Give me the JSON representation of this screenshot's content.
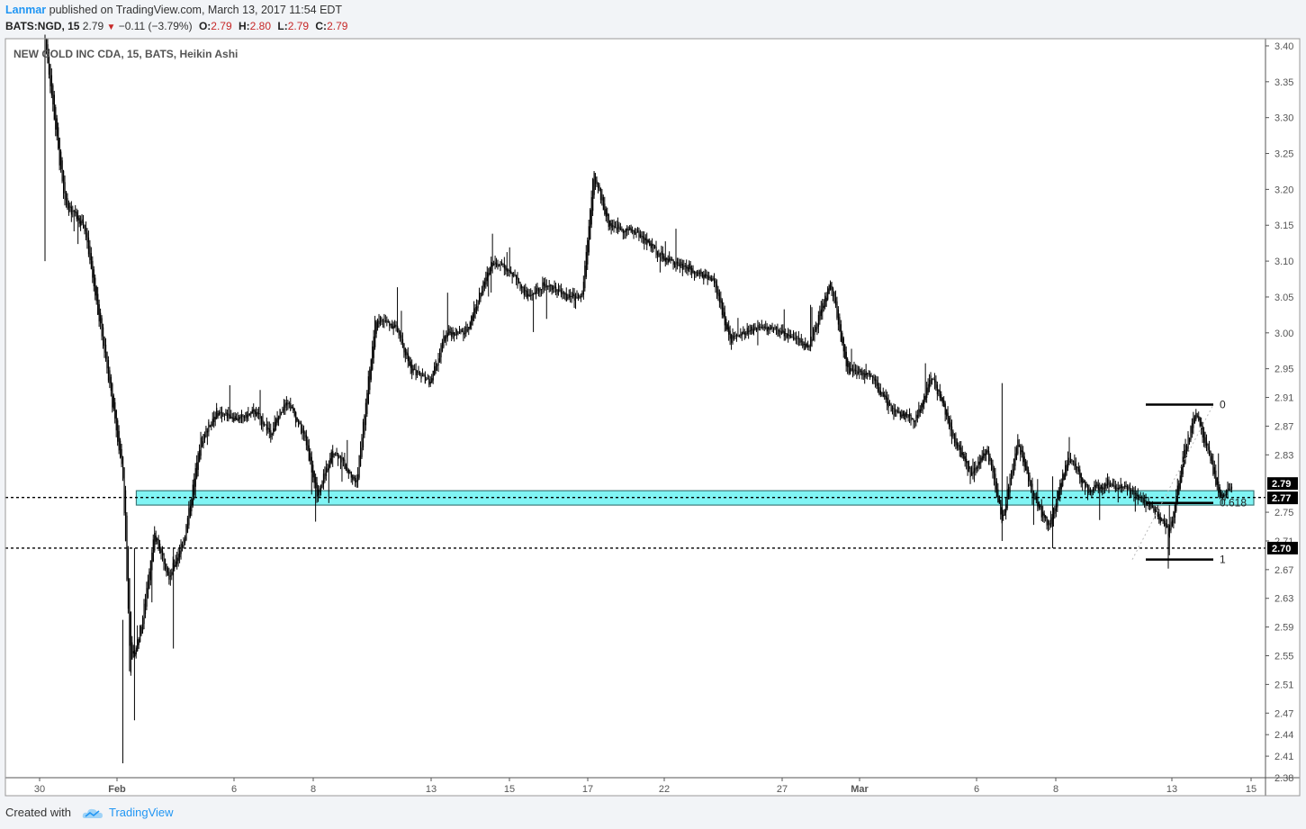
{
  "header": {
    "author": "Lanmar",
    "published_text": "published on TradingView.com, March 13, 2017 11:54 EDT",
    "symbol": "BATS:NGD, 15",
    "last": "2.79",
    "change": "−0.11 (−3.79%)",
    "o_label": "O:",
    "o_value": "2.79",
    "h_label": "H:",
    "h_value": "2.80",
    "l_label": "L:",
    "l_value": "2.79",
    "c_label": "C:",
    "c_value": "2.79"
  },
  "footer": {
    "created_with": "Created with",
    "brand": "TradingView",
    "icon": "tradingview-cloud-icon"
  },
  "colors": {
    "up": "#000000",
    "zone_fill": "#80f4f4",
    "zone_border": "#3c7a7a",
    "brand": "#2196f3",
    "down": "#c62828"
  },
  "chart_data": {
    "type": "candlestick",
    "legend": "NEW GOLD INC CDA, 15, BATS, Heikin Ashi",
    "y_axis": {
      "side": "right",
      "range": [
        2.38,
        3.41
      ],
      "ticks": [
        "3.40",
        "3.35",
        "3.30",
        "3.25",
        "3.20",
        "3.15",
        "3.10",
        "3.05",
        "3.00",
        "2.95",
        "2.91",
        "2.87",
        "2.83",
        "2.79",
        "2.77",
        "2.75",
        "2.71",
        "2.70",
        "2.67",
        "2.63",
        "2.59",
        "2.55",
        "2.51",
        "2.47",
        "2.44",
        "2.41",
        "2.38"
      ],
      "highlighted": [
        "2.79",
        "2.77",
        "2.70"
      ]
    },
    "x_axis": {
      "ticks": [
        "30",
        "Feb",
        "6",
        "8",
        "13",
        "15",
        "17",
        "22",
        "27",
        "Mar",
        "6",
        "8",
        "13",
        "15"
      ]
    },
    "series": [
      {
        "path_points": [
          [
            0.0,
            3.41
          ],
          [
            0.5,
            3.18
          ],
          [
            1.0,
            3.15
          ],
          [
            1.6,
            2.95
          ],
          [
            2.0,
            2.8
          ],
          [
            2.2,
            2.53
          ],
          [
            2.5,
            2.6
          ],
          [
            2.8,
            2.72
          ],
          [
            3.2,
            2.66
          ],
          [
            3.6,
            2.72
          ],
          [
            4.0,
            2.85
          ],
          [
            4.4,
            2.89
          ],
          [
            5.0,
            2.88
          ],
          [
            5.4,
            2.89
          ],
          [
            5.8,
            2.86
          ],
          [
            6.2,
            2.91
          ],
          [
            6.7,
            2.85
          ],
          [
            7.0,
            2.77
          ],
          [
            7.4,
            2.84
          ],
          [
            8.0,
            2.79
          ],
          [
            8.5,
            3.02
          ],
          [
            9.0,
            3.01
          ],
          [
            9.4,
            2.95
          ],
          [
            9.9,
            2.93
          ],
          [
            10.3,
            3.0
          ],
          [
            10.8,
            3.0
          ],
          [
            11.5,
            3.1
          ],
          [
            11.9,
            3.09
          ],
          [
            12.4,
            3.05
          ],
          [
            12.9,
            3.07
          ],
          [
            13.4,
            3.05
          ],
          [
            13.8,
            3.05
          ],
          [
            14.1,
            3.22
          ],
          [
            14.5,
            3.15
          ],
          [
            15.2,
            3.14
          ],
          [
            16.0,
            3.1
          ],
          [
            16.6,
            3.09
          ],
          [
            17.2,
            3.07
          ],
          [
            17.6,
            2.99
          ],
          [
            18.4,
            3.01
          ],
          [
            19.0,
            3.0
          ],
          [
            19.6,
            2.98
          ],
          [
            20.2,
            3.07
          ],
          [
            20.6,
            2.95
          ],
          [
            21.2,
            2.94
          ],
          [
            21.8,
            2.89
          ],
          [
            22.4,
            2.88
          ],
          [
            22.8,
            2.94
          ],
          [
            23.3,
            2.86
          ],
          [
            23.8,
            2.8
          ],
          [
            24.2,
            2.84
          ],
          [
            24.6,
            2.74
          ],
          [
            25.0,
            2.85
          ],
          [
            25.4,
            2.77
          ],
          [
            25.8,
            2.73
          ],
          [
            26.3,
            2.83
          ],
          [
            26.8,
            2.78
          ],
          [
            27.3,
            2.79
          ],
          [
            27.9,
            2.78
          ],
          [
            28.4,
            2.76
          ],
          [
            28.9,
            2.72
          ],
          [
            29.3,
            2.84
          ],
          [
            29.6,
            2.89
          ],
          [
            29.9,
            2.83
          ],
          [
            30.2,
            2.77
          ],
          [
            30.5,
            2.79
          ]
        ]
      }
    ],
    "support_zone": {
      "upper": 2.78,
      "lower": 2.76,
      "x_range": [
        2.0,
        31.0
      ]
    },
    "horizontal_lines": [
      {
        "value": 2.7705,
        "style": "dashed"
      },
      {
        "value": 2.7,
        "style": "dashed"
      }
    ],
    "fibonacci": {
      "x_range": [
        29.3,
        31.0
      ],
      "levels": [
        {
          "label": "0",
          "value": 2.9
        },
        {
          "label": "0.618",
          "value": 2.763
        },
        {
          "label": "1",
          "value": 2.684
        }
      ]
    }
  }
}
